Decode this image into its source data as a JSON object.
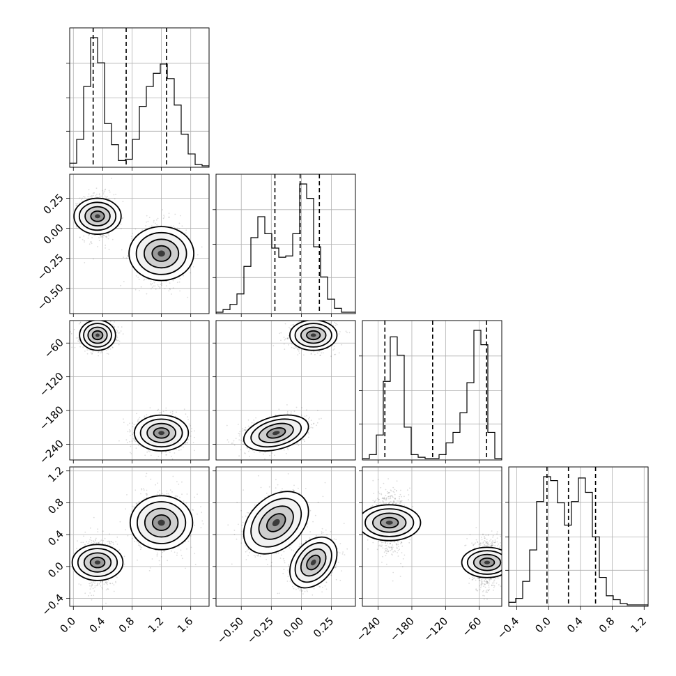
{
  "chart_data": {
    "type": "corner",
    "title": "",
    "grid": true,
    "parameters": [
      {
        "index": 0,
        "range": [
          -0.05,
          1.85
        ],
        "ticks": [
          0.0,
          0.4,
          0.8,
          1.2,
          1.6
        ],
        "tick_labels": [
          "0.0",
          "0.4",
          "0.8",
          "1.2",
          "1.6"
        ],
        "quantiles": [
          0.27,
          0.72,
          1.27
        ]
      },
      {
        "index": 1,
        "range": [
          -0.71,
          0.45
        ],
        "ticks": [
          -0.5,
          -0.25,
          0.0,
          0.25
        ],
        "tick_labels": [
          "−0.50",
          "−0.25",
          "0.00",
          "0.25"
        ],
        "quantiles": [
          -0.22,
          -0.01,
          0.15
        ]
      },
      {
        "index": 2,
        "range": [
          -268,
          -20
        ],
        "ticks": [
          -240,
          -180,
          -120,
          -60
        ],
        "tick_labels": [
          "−240",
          "−180",
          "−120",
          "−60"
        ],
        "quantiles": [
          -228,
          -143,
          -47
        ]
      },
      {
        "index": 3,
        "range": [
          -0.5,
          1.25
        ],
        "ticks": [
          -0.4,
          0.0,
          0.4,
          0.8,
          1.2
        ],
        "tick_labels": [
          "−0.4",
          "0.0",
          "0.4",
          "0.8",
          "1.2"
        ],
        "quantiles": [
          -0.02,
          0.25,
          0.59
        ]
      }
    ],
    "histograms": [
      {
        "param": 0,
        "bins": 20,
        "counts": [
          0.02,
          0.2,
          0.6,
          0.97,
          0.78,
          0.32,
          0.16,
          0.04,
          0.05,
          0.2,
          0.45,
          0.6,
          0.7,
          0.77,
          0.66,
          0.46,
          0.24,
          0.09,
          0.01,
          0.0
        ]
      },
      {
        "param": 1,
        "bins": 20,
        "counts": [
          0.0,
          0.02,
          0.06,
          0.14,
          0.35,
          0.57,
          0.73,
          0.6,
          0.49,
          0.42,
          0.43,
          0.6,
          0.98,
          0.87,
          0.5,
          0.27,
          0.1,
          0.03,
          0.0,
          0.0
        ]
      },
      {
        "param": 2,
        "bins": 20,
        "counts": [
          0.0,
          0.03,
          0.18,
          0.59,
          0.93,
          0.79,
          0.24,
          0.03,
          0.01,
          0.0,
          0.0,
          0.03,
          0.12,
          0.2,
          0.35,
          0.58,
          0.98,
          0.87,
          0.2,
          0.0
        ]
      },
      {
        "param": 3,
        "bins": 20,
        "counts": [
          0.02,
          0.05,
          0.18,
          0.42,
          0.79,
          0.98,
          0.95,
          0.78,
          0.61,
          0.79,
          0.97,
          0.86,
          0.52,
          0.21,
          0.07,
          0.04,
          0.01,
          0.0,
          0.0,
          0.0
        ]
      }
    ],
    "modes": [
      {
        "centers": [
          0.33,
          0.1,
          -46,
          0.05
        ],
        "sd": [
          0.1,
          0.08,
          11,
          0.13
        ]
      },
      {
        "centers": [
          1.2,
          -0.21,
          -220,
          0.55
        ],
        "sd": [
          0.15,
          0.11,
          13,
          0.16
        ]
      }
    ],
    "pair_correlations": {
      "1,0": [
        0.0,
        0.0
      ],
      "2,0": [
        0.0,
        0.0
      ],
      "2,1": [
        0.0,
        0.35
      ],
      "3,0": [
        0.0,
        0.0
      ],
      "3,1": [
        0.35,
        0.35
      ],
      "3,2": [
        0.0,
        0.0
      ]
    }
  }
}
